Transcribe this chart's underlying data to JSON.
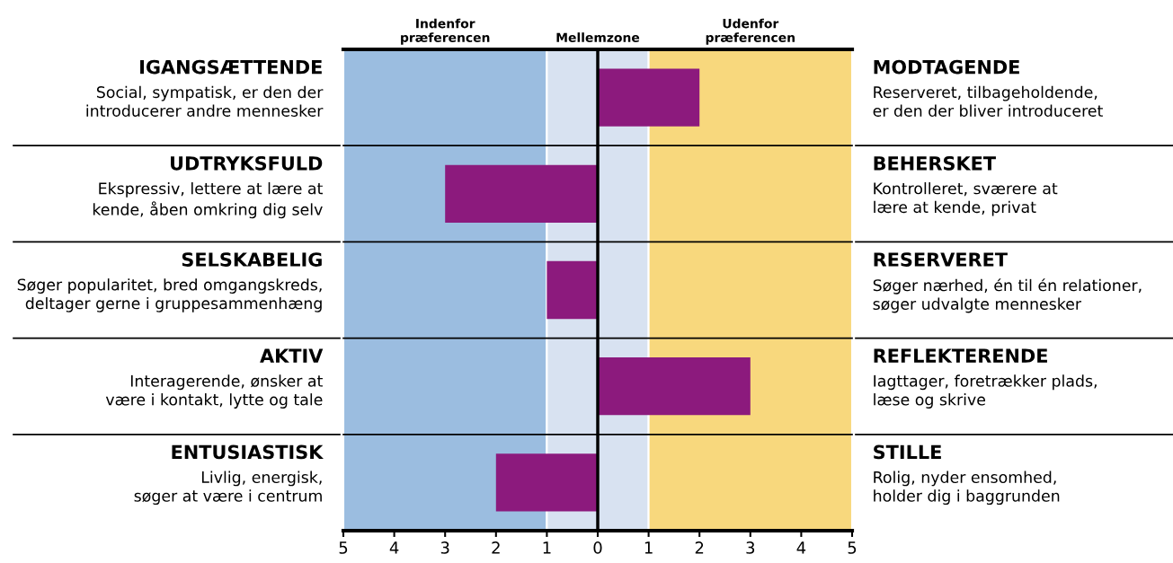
{
  "chart_data": {
    "type": "bar",
    "orientation": "horizontal",
    "categories": [
      "IGANGSÆTTENDE\nSocial, sympatisk, er den der\nintroducerer andre mennesker",
      "UDTRYKSFULD\nEkspressiv, lettere at lære at\nkende, åben omkring dig selv",
      "SELSKABELIG\nSøger popularitet, bred omgangskreds,\ndeltager gerne i gruppesammenhæng",
      "AKTIV\nInteragerende, ønsker at\nvære i kontakt, lytte og tale",
      "ENTUSIASTISK\nLivlig, energisk,\nsøger at være i centrum"
    ],
    "y2_categories": [
      "MODTAGENDE\nReserveret, tilbageholdende,\ner den der bliver introduceret",
      "BEHERSKET\nKontrolleret, sværere at\nlære at kende, privat",
      "RESERVERET\nSøger nærhed, én til én relationer,\nsøger udvalgte mennesker",
      "REFLEKTERENDE\nIagttager, foretrækker plads,\nlæse og skrive",
      "STILLE\nRolig, nyder ensomhed,\nholder dig i baggrunden"
    ],
    "values": [
      2,
      -3,
      -1,
      3,
      -2
    ],
    "color": "#8c1a7d",
    "xlim": [
      -5,
      5
    ],
    "xticks": [
      {
        "value": -5,
        "label": "5"
      },
      {
        "value": -4,
        "label": "4"
      },
      {
        "value": -3,
        "label": "3"
      },
      {
        "value": -2,
        "label": "2"
      },
      {
        "value": -1,
        "label": "1"
      },
      0,
      1,
      2,
      3,
      4,
      5
    ],
    "bands": [
      {
        "axis": "x",
        "from": -5,
        "to": -1,
        "label": "Indenfor\npræferencen",
        "color": "#9bbde0"
      },
      {
        "axis": "x",
        "from": -1,
        "to": 1,
        "label": "Mellemzone",
        "color": "#d8e2f1"
      },
      {
        "axis": "x",
        "from": 1,
        "to": 5,
        "label": "Udenfor\npræferencen",
        "color": "#f8d87d"
      }
    ],
    "ref_lines": [
      {
        "axis": "x",
        "value": 0,
        "color": "#000000"
      }
    ],
    "grid": false,
    "legend": false
  }
}
